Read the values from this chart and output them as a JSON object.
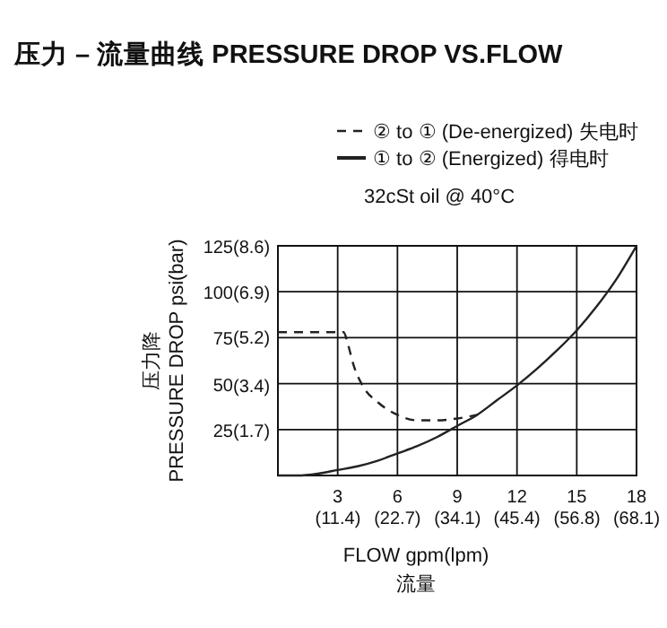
{
  "chart_data": {
    "type": "line",
    "title": "压力 – 流量曲线 PRESSURE DROP VS.FLOW",
    "xlabel": "FLOW gpm(lpm)\n流量",
    "ylabel": "压力降\nPRESSURE DROP psi(bar)",
    "annotations": [
      "32cSt oil @ 40°C"
    ],
    "xlim": [
      0,
      18
    ],
    "ylim": [
      0,
      125
    ],
    "x2lim": [
      0,
      68.1
    ],
    "y2lim": [
      0,
      8.6
    ],
    "xticks": [
      3,
      6,
      9,
      12,
      15,
      18
    ],
    "x2ticks": [
      {
        "value": 11.4,
        "label": "(11.4)"
      },
      {
        "value": 22.7,
        "label": "(22.7)"
      },
      {
        "value": 34.1,
        "label": "(34.1)"
      },
      {
        "value": 45.4,
        "label": "(45.4)"
      },
      {
        "value": 56.8,
        "label": "(56.8)"
      },
      {
        "value": 68.1,
        "label": "(68.1)"
      }
    ],
    "yticks": [
      25,
      50,
      75,
      100,
      125
    ],
    "y2ticks": [
      {
        "value": 1.7,
        "label": "(1.7)"
      },
      {
        "value": 3.4,
        "label": "(3.4)"
      },
      {
        "value": 5.2,
        "label": "(5.2)"
      },
      {
        "value": 6.9,
        "label": "(6.9)"
      },
      {
        "value": 8.6,
        "label": "(8.6)"
      }
    ],
    "grid": true,
    "legend": "top right",
    "marker": "none",
    "series": [
      {
        "name": "② to ① (De-energized)  失电时",
        "color": "#222222",
        "line_style": "dashed",
        "x": [
          0,
          3.3,
          3.5,
          3.8,
          4.3,
          5,
          6,
          7,
          8,
          9,
          10
        ],
        "values": [
          78,
          78,
          72,
          60,
          48,
          40,
          33,
          30,
          30,
          31,
          33
        ]
      },
      {
        "name": "① to ② (Energized)  得电时",
        "color": "#222222",
        "line_style": "solid",
        "x": [
          0,
          1,
          2,
          3,
          4,
          5,
          6,
          7,
          8,
          9,
          10,
          11,
          12,
          13,
          14,
          15,
          16,
          17,
          18
        ],
        "values": [
          0,
          0,
          1,
          3,
          5,
          8,
          12,
          16,
          21,
          27,
          33,
          41,
          49,
          58,
          68,
          79,
          92,
          107,
          125
        ]
      }
    ]
  }
}
